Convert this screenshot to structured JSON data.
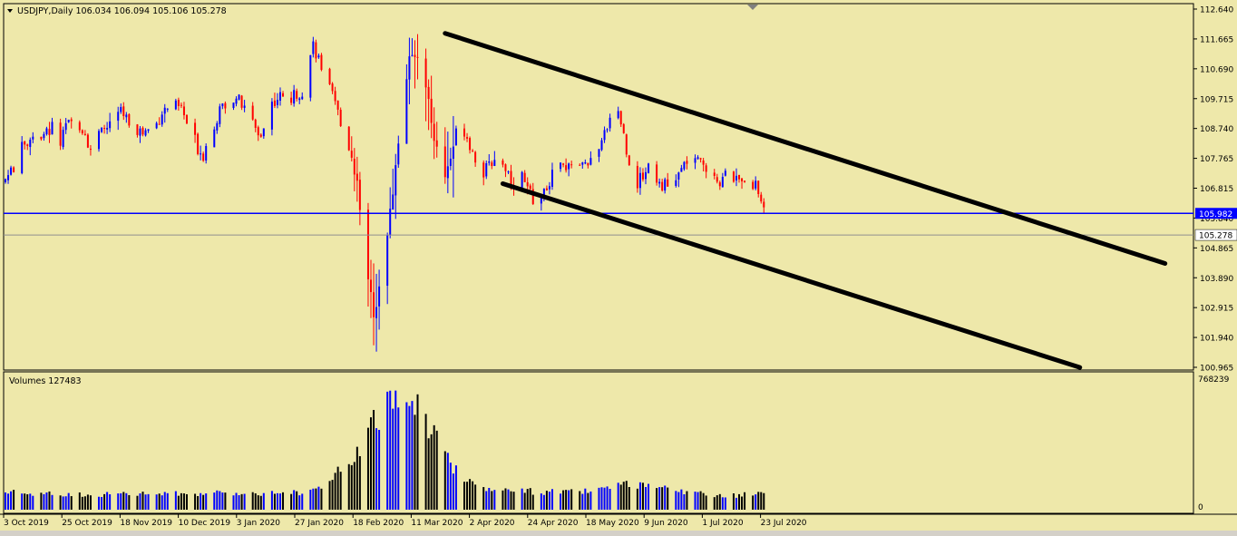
{
  "chart_data": {
    "type": "candlestick",
    "symbol_line": "USDJPY,Daily  106.034 106.094 105.106 105.278",
    "price_axis": {
      "range": [
        100.965,
        112.64
      ],
      "ticks": [
        "112.640",
        "111.665",
        "110.690",
        "109.715",
        "108.740",
        "107.765",
        "106.815",
        "105.840",
        "104.865",
        "103.890",
        "102.915",
        "101.940",
        "100.965"
      ]
    },
    "horizontal_line": {
      "value": 105.982,
      "label": "105.982",
      "color": "#0000FF"
    },
    "current_price": {
      "value": 105.278,
      "label": "105.278"
    },
    "channel_lines": [
      {
        "from": [
          "2020-03-09",
          111.85
        ],
        "to": [
          "2020-11-26",
          104.35
        ]
      },
      {
        "from": [
          "2020-03-30",
          106.95
        ],
        "to": [
          "2020-10-26",
          100.96
        ]
      }
    ],
    "x_axis_labels": [
      "3 Oct 2019",
      "25 Oct 2019",
      "18 Nov 2019",
      "10 Dec 2019",
      "3 Jan 2020",
      "27 Jan 2020",
      "18 Feb 2020",
      "11 Mar 2020",
      "2 Apr 2020",
      "24 Apr 2020",
      "18 May 2020",
      "9 Jun 2020",
      "1 Jul 2020",
      "23 Jul 2020"
    ],
    "path_start": "2019-10-01",
    "price_path": [
      [
        0,
        107.1
      ],
      [
        4,
        107.6
      ],
      [
        6,
        108.1
      ],
      [
        8,
        108.3
      ],
      [
        10,
        108.6
      ],
      [
        14,
        108.5
      ],
      [
        17,
        108.8
      ],
      [
        19,
        108.0
      ],
      [
        21,
        108.5
      ],
      [
        23,
        108.9
      ],
      [
        27,
        108.9
      ],
      [
        29,
        108.6
      ],
      [
        31,
        108.1
      ],
      [
        35,
        108.6
      ],
      [
        38,
        108.9
      ],
      [
        42,
        109.3
      ],
      [
        46,
        108.9
      ],
      [
        50,
        108.6
      ],
      [
        55,
        108.9
      ],
      [
        57,
        109.3
      ],
      [
        60,
        109.5
      ],
      [
        64,
        109.4
      ],
      [
        66,
        108.9
      ],
      [
        68,
        108.6
      ],
      [
        70,
        108.1
      ],
      [
        72,
        107.9
      ],
      [
        75,
        108.7
      ],
      [
        78,
        109.3
      ],
      [
        80,
        109.6
      ],
      [
        84,
        109.8
      ],
      [
        86,
        109.5
      ],
      [
        88,
        109.2
      ],
      [
        91,
        108.8
      ],
      [
        93,
        108.5
      ],
      [
        97,
        109.6
      ],
      [
        100,
        109.8
      ],
      [
        103,
        109.6
      ],
      [
        106,
        109.9
      ],
      [
        108,
        110.0
      ],
      [
        110,
        110.8
      ],
      [
        112,
        111.5
      ],
      [
        114,
        111.0
      ],
      [
        116,
        110.5
      ],
      [
        118,
        110.0
      ],
      [
        120,
        109.5
      ],
      [
        122,
        109.0
      ],
      [
        124,
        108.5
      ],
      [
        126,
        107.8
      ],
      [
        128,
        107.0
      ],
      [
        130,
        105.5
      ],
      [
        132,
        104.0
      ],
      [
        134,
        102.5
      ],
      [
        136,
        103.8
      ],
      [
        138,
        104.8
      ],
      [
        140,
        106.0
      ],
      [
        142,
        107.5
      ],
      [
        144,
        109.0
      ],
      [
        146,
        110.5
      ],
      [
        148,
        111.3
      ],
      [
        150,
        111.2
      ],
      [
        152,
        110.5
      ],
      [
        154,
        109.5
      ],
      [
        156,
        108.5
      ],
      [
        158,
        107.6
      ],
      [
        160,
        107.2
      ],
      [
        162,
        107.8
      ],
      [
        164,
        108.6
      ],
      [
        166,
        108.9
      ],
      [
        168,
        108.5
      ],
      [
        170,
        108.0
      ],
      [
        172,
        107.6
      ],
      [
        174,
        107.3
      ],
      [
        176,
        107.5
      ],
      [
        178,
        107.8
      ],
      [
        180,
        107.6
      ],
      [
        182,
        107.5
      ],
      [
        184,
        107.1
      ],
      [
        186,
        106.9
      ],
      [
        188,
        107.2
      ],
      [
        190,
        106.7
      ],
      [
        192,
        106.5
      ],
      [
        194,
        106.3
      ],
      [
        196,
        106.6
      ],
      [
        198,
        107.0
      ],
      [
        200,
        107.5
      ],
      [
        202,
        107.6
      ],
      [
        204,
        107.3
      ],
      [
        206,
        107.7
      ],
      [
        208,
        107.6
      ],
      [
        210,
        107.5
      ],
      [
        212,
        107.7
      ],
      [
        214,
        107.6
      ],
      [
        216,
        107.9
      ],
      [
        218,
        108.6
      ],
      [
        220,
        109.2
      ],
      [
        222,
        109.6
      ],
      [
        224,
        109.0
      ],
      [
        226,
        108.0
      ],
      [
        228,
        107.3
      ],
      [
        230,
        107.0
      ],
      [
        232,
        107.2
      ],
      [
        234,
        107.6
      ],
      [
        236,
        107.3
      ],
      [
        238,
        107.0
      ],
      [
        240,
        106.9
      ],
      [
        242,
        106.7
      ],
      [
        244,
        107.1
      ],
      [
        246,
        107.4
      ],
      [
        248,
        107.7
      ],
      [
        250,
        107.9
      ],
      [
        252,
        107.6
      ],
      [
        254,
        107.6
      ],
      [
        256,
        107.4
      ],
      [
        258,
        107.3
      ],
      [
        260,
        107.0
      ],
      [
        262,
        107.2
      ],
      [
        264,
        107.3
      ],
      [
        266,
        107.0
      ],
      [
        268,
        107.2
      ],
      [
        270,
        107.1
      ],
      [
        272,
        107.0
      ],
      [
        274,
        106.7
      ],
      [
        276,
        106.1
      ],
      [
        278,
        105.3
      ]
    ],
    "volume_panel": {
      "label": "Volumes 127483",
      "ticks": [
        "768239",
        "0"
      ],
      "range": [
        0,
        768239
      ],
      "path": [
        [
          0,
          110000
        ],
        [
          10,
          100000
        ],
        [
          30,
          95000
        ],
        [
          60,
          100000
        ],
        [
          90,
          105000
        ],
        [
          110,
          110000
        ],
        [
          118,
          160000
        ],
        [
          122,
          250000
        ],
        [
          126,
          330000
        ],
        [
          130,
          420000
        ],
        [
          134,
          530000
        ],
        [
          138,
          640000
        ],
        [
          142,
          730000
        ],
        [
          145,
          768239
        ],
        [
          148,
          700000
        ],
        [
          152,
          600000
        ],
        [
          156,
          480000
        ],
        [
          160,
          340000
        ],
        [
          164,
          250000
        ],
        [
          168,
          190000
        ],
        [
          172,
          150000
        ],
        [
          180,
          120000
        ],
        [
          200,
          110000
        ],
        [
          215,
          115000
        ],
        [
          225,
          155000
        ],
        [
          235,
          140000
        ],
        [
          250,
          105000
        ],
        [
          265,
          88000
        ],
        [
          278,
          110000
        ]
      ]
    },
    "colors": {
      "up": "#0000FF",
      "down": "#FF0000",
      "background": "#EEE8AA",
      "channel": "#000000",
      "volume_up": "#0000FF",
      "volume_down": "#000000"
    }
  }
}
